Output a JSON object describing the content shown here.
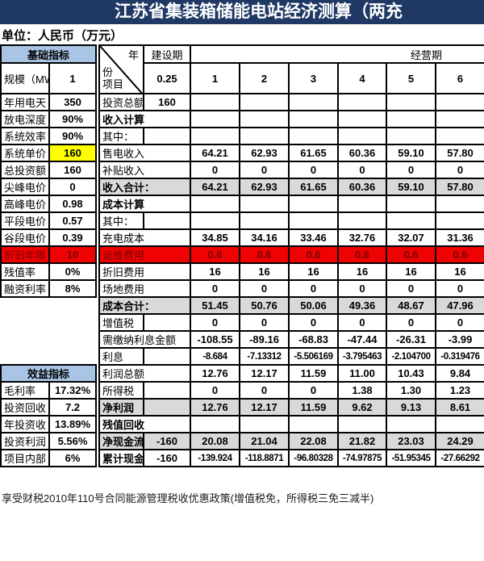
{
  "title": "江苏省集装箱储能电站经济测算（两充",
  "unit_label": "单位：人民币（万元）",
  "footer_note": "享受财税2010年110号合同能源管理税收优惠政策(增值税免，所得税三免三减半)",
  "colors": {
    "title_bar": "#1F3864",
    "section_header_blue": "#A9C5E5",
    "total_row_gray": "#D9D9D9",
    "highlight_yellow": "#FFFF00",
    "highlight_red": "#EE0202",
    "red_cell_text": "#7A0000"
  },
  "left_table": {
    "section1_header": "基础指标",
    "rows": [
      {
        "label": "规模（MW",
        "value": "1",
        "tall": true
      },
      {
        "label": "年用电天",
        "value": "350"
      },
      {
        "label": "放电深度",
        "value": "90%"
      },
      {
        "label": "系统效率",
        "value": "90%"
      },
      {
        "label": "系统单价",
        "value": "160",
        "value_bg": "yellow"
      },
      {
        "label": "总投资额",
        "value": "160"
      },
      {
        "label": "尖峰电价",
        "value": "0"
      },
      {
        "label": "高峰电价",
        "value": "0.98"
      },
      {
        "label": "平段电价",
        "value": "0.57"
      },
      {
        "label": "谷段电价",
        "value": "0.39"
      },
      {
        "label": "折旧年限",
        "value": "10",
        "row_bg": "red"
      },
      {
        "label": "残值率",
        "value": "0%"
      },
      {
        "label": "融资利率",
        "value": "8%"
      },
      {
        "blank": true
      },
      {
        "blank": true
      },
      {
        "blank": true
      },
      {
        "blank": true
      },
      {
        "section": "效益指标"
      },
      {
        "label": "毛利率",
        "value": "17.32%"
      },
      {
        "label": "投资回收",
        "value": "7.2"
      },
      {
        "label": "年投资收",
        "value": "13.89%"
      },
      {
        "label": "投资利润",
        "value": "5.56%"
      },
      {
        "label": "项目内部",
        "value": "6%"
      }
    ]
  },
  "main_table": {
    "corner": {
      "top": "年",
      "mid": "份",
      "bottom": "项目"
    },
    "construction_header": "建设期",
    "operation_header": "经营期",
    "year_cols": [
      "0.25",
      "1",
      "2",
      "3",
      "4",
      "5",
      "6"
    ],
    "rows": [
      {
        "label": "投资总额",
        "split": true,
        "c025": "160",
        "values": [
          "",
          "",
          "",
          "",
          "",
          ""
        ]
      },
      {
        "label": "收入计算",
        "bold": true,
        "values": [
          "",
          "",
          "",
          "",
          "",
          ""
        ]
      },
      {
        "label": "其中：",
        "split": true,
        "c025": "",
        "values": [
          "",
          "",
          "",
          "",
          "",
          ""
        ]
      },
      {
        "label": "售电收入",
        "values": [
          "64.21",
          "62.93",
          "61.65",
          "60.36",
          "59.10",
          "57.80"
        ]
      },
      {
        "label": "补贴收入",
        "values": [
          "0",
          "0",
          "0",
          "0",
          "0",
          "0"
        ]
      },
      {
        "label": "收入合计：",
        "bold": true,
        "gray": true,
        "values": [
          "64.21",
          "62.93",
          "61.65",
          "60.36",
          "59.10",
          "57.80"
        ]
      },
      {
        "label": "成本计算",
        "bold": true,
        "values": [
          "",
          "",
          "",
          "",
          "",
          ""
        ]
      },
      {
        "label": "其中：",
        "split": true,
        "c025": "",
        "values": [
          "",
          "",
          "",
          "",
          "",
          ""
        ]
      },
      {
        "label": "充电成本",
        "values": [
          "34.85",
          "34.16",
          "33.46",
          "32.76",
          "32.07",
          "31.36"
        ]
      },
      {
        "label": "运维费用",
        "red": true,
        "values": [
          "0.6",
          "0.6",
          "0.6",
          "0.6",
          "0.6",
          "0.6"
        ]
      },
      {
        "label": "折旧费用",
        "values": [
          "16",
          "16",
          "16",
          "16",
          "16",
          "16"
        ]
      },
      {
        "label": "场地费用",
        "values": [
          "0",
          "0",
          "0",
          "0",
          "0",
          "0"
        ]
      },
      {
        "label": "成本合计：",
        "bold": true,
        "gray": true,
        "values": [
          "51.45",
          "50.76",
          "50.06",
          "49.36",
          "48.67",
          "47.96"
        ]
      },
      {
        "label": "增值税",
        "split": true,
        "c025": "",
        "values": [
          "0",
          "0",
          "0",
          "0",
          "0",
          "0"
        ]
      },
      {
        "label": "需缴纳利息金额",
        "values": [
          "-108.55",
          "-89.16",
          "-68.83",
          "-47.44",
          "-26.31",
          "-3.99"
        ]
      },
      {
        "label": "利息",
        "split": true,
        "c025": "",
        "small": true,
        "values": [
          "-8.684",
          "-7.13312",
          "-5.506169",
          "-3.795463",
          "-2.104700",
          "-0.319476"
        ]
      },
      {
        "label": "利润总额",
        "values": [
          "12.76",
          "12.17",
          "11.59",
          "11.00",
          "10.43",
          "9.84"
        ]
      },
      {
        "label": "所得税",
        "split": true,
        "c025": "",
        "values": [
          "0",
          "0",
          "0",
          "1.38",
          "1.30",
          "1.23"
        ]
      },
      {
        "label": "净利润",
        "split": true,
        "bold": true,
        "gray": true,
        "gray_c025": true,
        "c025": "",
        "values": [
          "12.76",
          "12.17",
          "11.59",
          "9.62",
          "9.13",
          "8.61"
        ]
      },
      {
        "label": "残值回收",
        "bold": true,
        "values": [
          "",
          "",
          "",
          "",
          "",
          ""
        ]
      },
      {
        "label": "净现金流",
        "split": true,
        "bold": true,
        "gray": true,
        "gray_c025": true,
        "c025": "-160",
        "values": [
          "20.08",
          "21.04",
          "22.08",
          "21.82",
          "23.03",
          "24.29"
        ]
      },
      {
        "label": "累计现金",
        "split": true,
        "bold": true,
        "c025": "-160",
        "small": true,
        "values": [
          "-139.924",
          "-118.8871",
          "-96.80328",
          "-74.97875",
          "-51.95345",
          "-27.66292"
        ]
      }
    ]
  }
}
